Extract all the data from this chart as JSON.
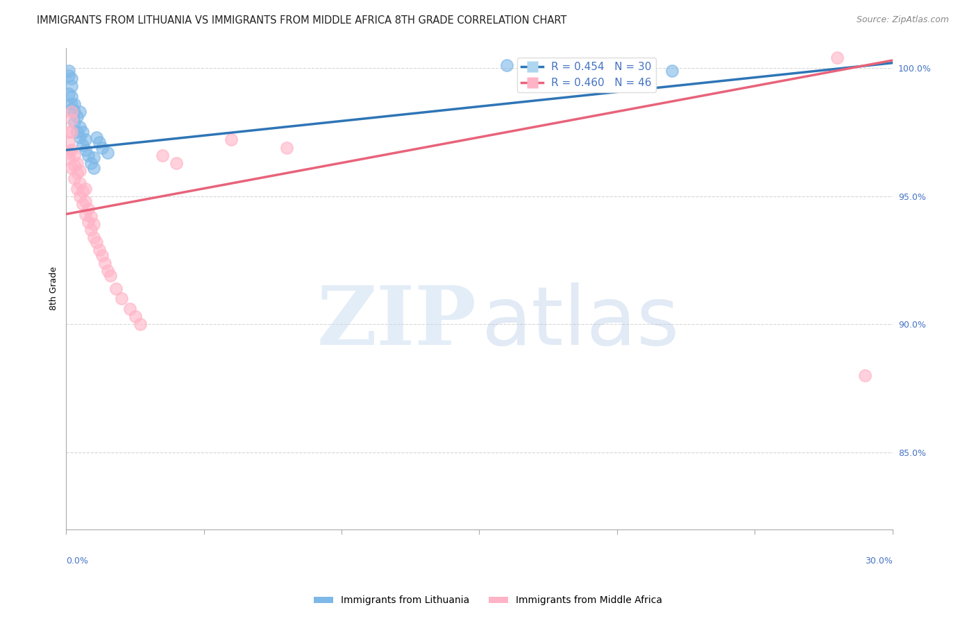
{
  "title": "IMMIGRANTS FROM LITHUANIA VS IMMIGRANTS FROM MIDDLE AFRICA 8TH GRADE CORRELATION CHART",
  "source": "Source: ZipAtlas.com",
  "ylabel": "8th Grade",
  "xmin": 0.0,
  "xmax": 0.3,
  "ymin": 0.82,
  "ymax": 1.008,
  "yticks": [
    0.85,
    0.9,
    0.95,
    1.0
  ],
  "ytick_labels": [
    "85.0%",
    "90.0%",
    "95.0%",
    "100.0%"
  ],
  "legend_blue_R": 0.454,
  "legend_blue_N": 30,
  "legend_pink_R": 0.46,
  "legend_pink_N": 46,
  "blue_scatter_color": "#7EB8E8",
  "pink_scatter_color": "#FFB3C6",
  "blue_line_color": "#2E75B6",
  "pink_line_color": "#E8637A",
  "blue_trendline_x0": 0.0,
  "blue_trendline_y0": 0.968,
  "blue_trendline_x1": 0.3,
  "blue_trendline_y1": 1.002,
  "pink_trendline_x0": 0.0,
  "pink_trendline_y0": 0.943,
  "pink_trendline_x1": 0.3,
  "pink_trendline_y1": 1.003,
  "blue_scatter_x": [
    0.001,
    0.001,
    0.001,
    0.002,
    0.002,
    0.002,
    0.002,
    0.002,
    0.003,
    0.003,
    0.003,
    0.004,
    0.004,
    0.005,
    0.005,
    0.005,
    0.006,
    0.006,
    0.007,
    0.007,
    0.008,
    0.009,
    0.01,
    0.01,
    0.011,
    0.012,
    0.013,
    0.015,
    0.16,
    0.22
  ],
  "blue_scatter_y": [
    0.99,
    0.997,
    0.999,
    0.984,
    0.986,
    0.989,
    0.993,
    0.996,
    0.979,
    0.983,
    0.986,
    0.975,
    0.981,
    0.973,
    0.977,
    0.983,
    0.97,
    0.975,
    0.968,
    0.972,
    0.966,
    0.963,
    0.961,
    0.965,
    0.973,
    0.971,
    0.969,
    0.967,
    1.001,
    0.999
  ],
  "pink_scatter_x": [
    0.001,
    0.001,
    0.001,
    0.001,
    0.002,
    0.002,
    0.002,
    0.002,
    0.002,
    0.003,
    0.003,
    0.003,
    0.004,
    0.004,
    0.004,
    0.005,
    0.005,
    0.005,
    0.006,
    0.006,
    0.007,
    0.007,
    0.007,
    0.008,
    0.008,
    0.009,
    0.009,
    0.01,
    0.01,
    0.011,
    0.012,
    0.013,
    0.014,
    0.015,
    0.016,
    0.018,
    0.02,
    0.023,
    0.025,
    0.027,
    0.035,
    0.04,
    0.06,
    0.08,
    0.28,
    0.29
  ],
  "pink_scatter_y": [
    0.975,
    0.971,
    0.967,
    0.965,
    0.961,
    0.968,
    0.975,
    0.98,
    0.983,
    0.957,
    0.962,
    0.966,
    0.953,
    0.959,
    0.963,
    0.95,
    0.955,
    0.96,
    0.947,
    0.952,
    0.943,
    0.948,
    0.953,
    0.94,
    0.945,
    0.937,
    0.942,
    0.934,
    0.939,
    0.932,
    0.929,
    0.927,
    0.924,
    0.921,
    0.919,
    0.914,
    0.91,
    0.906,
    0.903,
    0.9,
    0.966,
    0.963,
    0.972,
    0.969,
    1.004,
    0.88
  ],
  "grid_color": "#CCCCCC",
  "background_color": "#FFFFFF",
  "title_fontsize": 10.5,
  "axis_label_fontsize": 9,
  "tick_fontsize": 9,
  "legend_fontsize": 11,
  "source_fontsize": 9,
  "bottom_legend_blue": "Immigrants from Lithuania",
  "bottom_legend_pink": "Immigrants from Middle Africa"
}
